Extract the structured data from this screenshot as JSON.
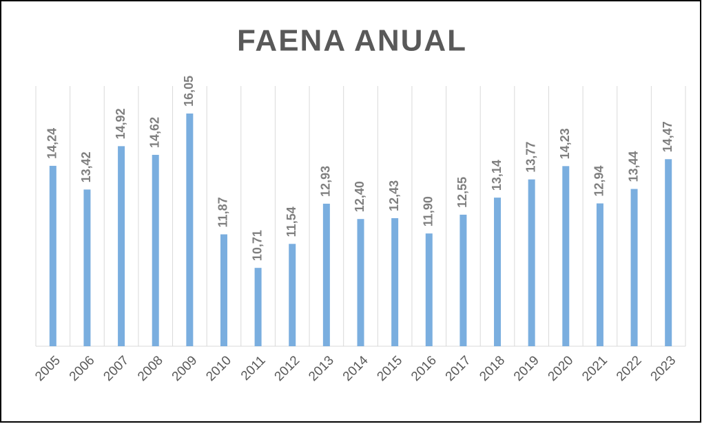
{
  "chart_data": {
    "type": "bar",
    "title": "FAENA ANUAL",
    "categories": [
      "2005",
      "2006",
      "2007",
      "2008",
      "2009",
      "2010",
      "2011",
      "2012",
      "2013",
      "2014",
      "2015",
      "2016",
      "2017",
      "2018",
      "2019",
      "2020",
      "2021",
      "2022",
      "2023"
    ],
    "values": [
      14.24,
      13.42,
      14.92,
      14.62,
      16.05,
      11.87,
      10.71,
      11.54,
      12.93,
      12.4,
      12.43,
      11.9,
      12.55,
      13.14,
      13.77,
      14.23,
      12.94,
      13.44,
      14.47
    ],
    "value_labels": [
      "14,24",
      "13,42",
      "14,92",
      "14,62",
      "16,05",
      "11,87",
      "10,71",
      "11,54",
      "12,93",
      "12,40",
      "12,43",
      "11,90",
      "12,55",
      "13,14",
      "13,77",
      "14,23",
      "12,94",
      "13,44",
      "14,47"
    ],
    "color": "#7aaedf",
    "ylim": [
      8,
      17
    ]
  }
}
